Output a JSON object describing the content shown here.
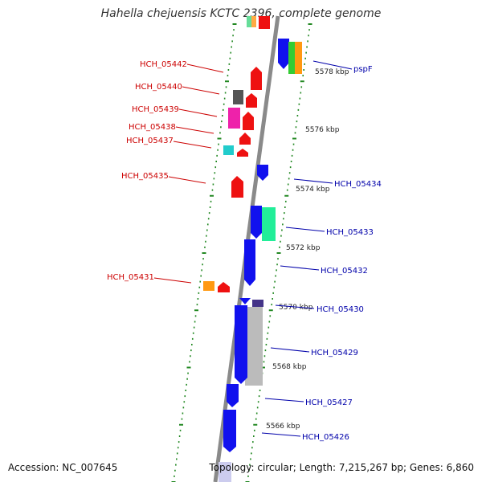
{
  "title": "Hahella chejuensis KCTC 2396, complete genome",
  "footer": {
    "accession": "Accession: NC_007645",
    "summary": "Topology: circular; Length: 7,215,267 bp; Genes: 6,860"
  },
  "colors": {
    "backbone": "#888888",
    "tick": "#228822",
    "left_label": "#cc0000",
    "right_label": "#0000aa"
  },
  "kbp_ticks": [
    "5578 kbp",
    "5576 kbp",
    "5574 kbp",
    "5572 kbp",
    "5570 kbp",
    "5568 kbp",
    "5566 kbp"
  ],
  "left_labels": [
    "HCH_05442",
    "HCH_05440",
    "HCH_05439",
    "HCH_05438",
    "HCH_05437",
    "HCH_05435",
    "HCH_05431"
  ],
  "right_labels": [
    "pspF",
    "HCH_05434",
    "HCH_05433",
    "HCH_05432",
    "HCH_05430",
    "HCH_05429",
    "HCH_05427",
    "HCH_05426"
  ]
}
